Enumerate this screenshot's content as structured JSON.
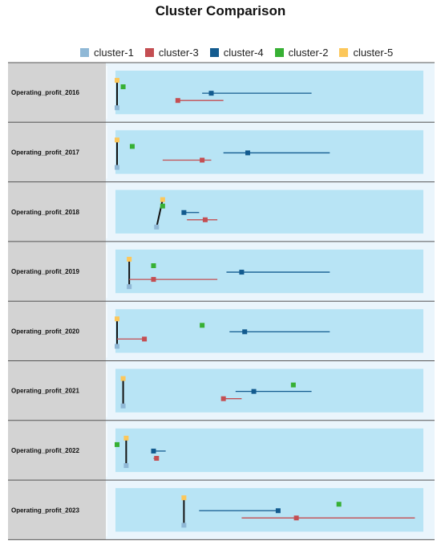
{
  "chart_data": {
    "type": "dot-range",
    "title": "Cluster Comparison",
    "legend": [
      {
        "name": "cluster-1",
        "color": "#8fb8d6"
      },
      {
        "name": "cluster-3",
        "color": "#c44e52"
      },
      {
        "name": "cluster-4",
        "color": "#135b8f"
      },
      {
        "name": "cluster-2",
        "color": "#37b034"
      },
      {
        "name": "cluster-5",
        "color": "#fcc75a"
      }
    ],
    "legend_position": "top",
    "rows": [
      {
        "label": "Operating_profit_2016",
        "points": [
          {
            "cluster": "cluster-5",
            "lo": 0.0,
            "mid": 0.0,
            "hi": 0.0
          },
          {
            "cluster": "cluster-2",
            "lo": 0.02,
            "mid": 0.02,
            "hi": 0.02
          },
          {
            "cluster": "cluster-4",
            "lo": 0.28,
            "mid": 0.31,
            "hi": 0.64
          },
          {
            "cluster": "cluster-3",
            "lo": 0.2,
            "mid": 0.2,
            "hi": 0.35
          },
          {
            "cluster": "cluster-1",
            "lo": 0.0,
            "mid": 0.0,
            "hi": 0.0
          }
        ]
      },
      {
        "label": "Operating_profit_2017",
        "points": [
          {
            "cluster": "cluster-5",
            "lo": 0.0,
            "mid": 0.0,
            "hi": 0.0
          },
          {
            "cluster": "cluster-2",
            "lo": 0.05,
            "mid": 0.05,
            "hi": 0.05
          },
          {
            "cluster": "cluster-4",
            "lo": 0.35,
            "mid": 0.43,
            "hi": 0.7
          },
          {
            "cluster": "cluster-3",
            "lo": 0.15,
            "mid": 0.28,
            "hi": 0.31
          },
          {
            "cluster": "cluster-1",
            "lo": 0.0,
            "mid": 0.0,
            "hi": 0.0
          }
        ]
      },
      {
        "label": "Operating_profit_2018",
        "points": [
          {
            "cluster": "cluster-5",
            "lo": 0.15,
            "mid": 0.15,
            "hi": 0.15
          },
          {
            "cluster": "cluster-2",
            "lo": 0.15,
            "mid": 0.15,
            "hi": 0.15
          },
          {
            "cluster": "cluster-4",
            "lo": 0.22,
            "mid": 0.22,
            "hi": 0.27
          },
          {
            "cluster": "cluster-3",
            "lo": 0.23,
            "mid": 0.29,
            "hi": 0.33
          },
          {
            "cluster": "cluster-1",
            "lo": 0.13,
            "mid": 0.13,
            "hi": 0.13
          }
        ]
      },
      {
        "label": "Operating_profit_2019",
        "points": [
          {
            "cluster": "cluster-5",
            "lo": 0.04,
            "mid": 0.04,
            "hi": 0.04
          },
          {
            "cluster": "cluster-2",
            "lo": 0.12,
            "mid": 0.12,
            "hi": 0.12
          },
          {
            "cluster": "cluster-4",
            "lo": 0.36,
            "mid": 0.41,
            "hi": 0.7
          },
          {
            "cluster": "cluster-3",
            "lo": 0.04,
            "mid": 0.12,
            "hi": 0.33
          },
          {
            "cluster": "cluster-1",
            "lo": 0.04,
            "mid": 0.04,
            "hi": 0.04
          }
        ]
      },
      {
        "label": "Operating_profit_2020",
        "points": [
          {
            "cluster": "cluster-5",
            "lo": 0.0,
            "mid": 0.0,
            "hi": 0.0
          },
          {
            "cluster": "cluster-2",
            "lo": 0.28,
            "mid": 0.28,
            "hi": 0.28
          },
          {
            "cluster": "cluster-4",
            "lo": 0.37,
            "mid": 0.42,
            "hi": 0.7
          },
          {
            "cluster": "cluster-3",
            "lo": 0.0,
            "mid": 0.09,
            "hi": 0.09
          },
          {
            "cluster": "cluster-1",
            "lo": 0.0,
            "mid": 0.0,
            "hi": 0.0
          }
        ]
      },
      {
        "label": "Operating_profit_2021",
        "points": [
          {
            "cluster": "cluster-5",
            "lo": 0.02,
            "mid": 0.02,
            "hi": 0.02
          },
          {
            "cluster": "cluster-2",
            "lo": 0.58,
            "mid": 0.58,
            "hi": 0.58
          },
          {
            "cluster": "cluster-4",
            "lo": 0.39,
            "mid": 0.45,
            "hi": 0.64
          },
          {
            "cluster": "cluster-3",
            "lo": 0.35,
            "mid": 0.35,
            "hi": 0.41
          },
          {
            "cluster": "cluster-1",
            "lo": 0.02,
            "mid": 0.02,
            "hi": 0.02
          }
        ]
      },
      {
        "label": "Operating_profit_2022",
        "points": [
          {
            "cluster": "cluster-5",
            "lo": 0.03,
            "mid": 0.03,
            "hi": 0.03
          },
          {
            "cluster": "cluster-2",
            "lo": 0.0,
            "mid": 0.0,
            "hi": 0.0
          },
          {
            "cluster": "cluster-4",
            "lo": 0.12,
            "mid": 0.12,
            "hi": 0.16
          },
          {
            "cluster": "cluster-3",
            "lo": 0.12,
            "mid": 0.13,
            "hi": 0.13
          },
          {
            "cluster": "cluster-1",
            "lo": 0.03,
            "mid": 0.03,
            "hi": 0.03
          }
        ]
      },
      {
        "label": "Operating_profit_2023",
        "points": [
          {
            "cluster": "cluster-5",
            "lo": 0.22,
            "mid": 0.22,
            "hi": 0.22
          },
          {
            "cluster": "cluster-2",
            "lo": 0.73,
            "mid": 0.73,
            "hi": 0.73
          },
          {
            "cluster": "cluster-4",
            "lo": 0.27,
            "mid": 0.53,
            "hi": 0.53
          },
          {
            "cluster": "cluster-3",
            "lo": 0.41,
            "mid": 0.59,
            "hi": 0.98
          },
          {
            "cluster": "cluster-1",
            "lo": 0.22,
            "mid": 0.22,
            "hi": 0.22
          }
        ]
      }
    ]
  }
}
